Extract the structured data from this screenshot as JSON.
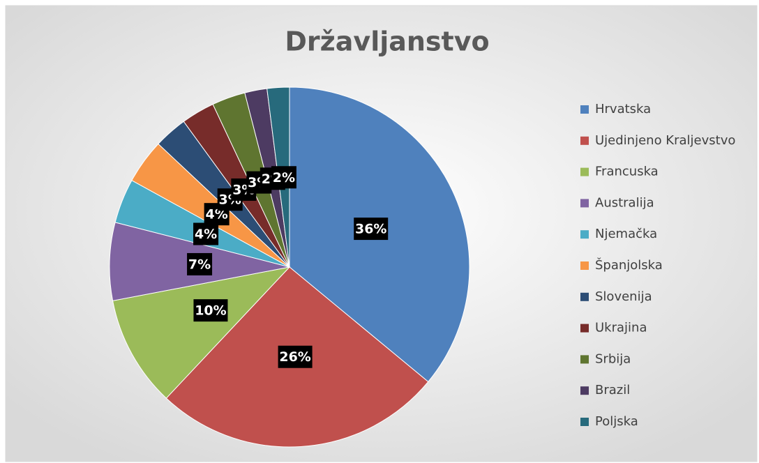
{
  "chart_data": {
    "type": "pie",
    "title": "Državljanstvo",
    "categories": [
      "Hrvatska",
      "Ujedinjeno Kraljevstvo",
      "Francuska",
      "Australija",
      "Njemačka",
      "Španjolska",
      "Slovenija",
      "Ukrajina",
      "Srbija",
      "Brazil",
      "Poljska"
    ],
    "values": [
      36,
      26,
      10,
      7,
      4,
      4,
      3,
      3,
      3,
      2,
      2
    ],
    "value_labels": [
      "36%",
      "26%",
      "10%",
      "7%",
      "4%",
      "4%",
      "3%",
      "3%",
      "3%",
      "2%",
      "2%"
    ],
    "colors": [
      "#4f81bd",
      "#c0504d",
      "#9bbb59",
      "#8064a2",
      "#4bacc6",
      "#f79646",
      "#2c4d75",
      "#772c2a",
      "#5f7530",
      "#4d3b62",
      "#276a7c"
    ],
    "legend": "right"
  }
}
